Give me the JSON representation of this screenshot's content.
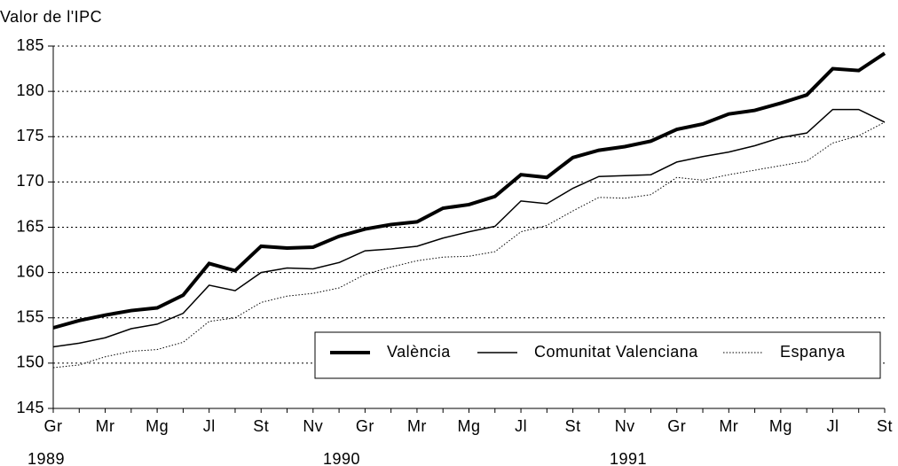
{
  "chart_data": {
    "type": "line",
    "y_axis_label": "Valor de l'IPC",
    "categories": [
      "Gr",
      null,
      "Mr",
      null,
      "Mg",
      null,
      "Jl",
      null,
      "St",
      null,
      "Nv",
      null,
      "Gr",
      null,
      "Mr",
      null,
      "Mg",
      null,
      "Jl",
      null,
      "St",
      null,
      "Nv",
      null,
      "Gr",
      null,
      "Mr",
      null,
      "Mg",
      null,
      "Jl",
      null,
      "St"
    ],
    "years": [
      "1989",
      "1990",
      "1991"
    ],
    "series": [
      {
        "name": "València",
        "color": "#000000",
        "width": 4,
        "values": [
          153.9,
          154.7,
          155.3,
          155.8,
          156.1,
          157.5,
          161.0,
          160.2,
          162.9,
          162.7,
          162.8,
          164.0,
          164.8,
          165.3,
          165.6,
          167.1,
          167.5,
          168.4,
          170.8,
          170.5,
          172.7,
          173.5,
          173.9,
          174.5,
          175.8,
          176.4,
          177.5,
          177.9,
          178.7,
          179.6,
          182.5,
          182.3,
          184.2
        ]
      },
      {
        "name": "Comunitat Valenciana",
        "color": "#000000",
        "width": 1.5,
        "values": [
          151.8,
          152.2,
          152.8,
          153.8,
          154.3,
          155.5,
          158.6,
          158.0,
          160.0,
          160.5,
          160.4,
          161.1,
          162.4,
          162.6,
          162.9,
          163.8,
          164.5,
          165.1,
          167.9,
          167.6,
          169.3,
          170.6,
          170.7,
          170.8,
          172.2,
          172.8,
          173.3,
          174.0,
          174.9,
          175.4,
          178.0,
          178.0,
          176.6
        ]
      },
      {
        "name": "Espanya",
        "color": "#000000",
        "width": 1,
        "dash": "dotted",
        "values": [
          149.5,
          149.8,
          150.7,
          151.3,
          151.5,
          152.3,
          154.6,
          155.0,
          156.7,
          157.4,
          157.7,
          158.3,
          159.8,
          160.6,
          161.3,
          161.7,
          161.8,
          162.3,
          164.5,
          165.2,
          166.8,
          168.3,
          168.2,
          168.6,
          170.5,
          170.2,
          170.8,
          171.3,
          171.8,
          172.3,
          174.3,
          175.1,
          176.6
        ]
      }
    ],
    "ylim": [
      145,
      185
    ],
    "yticks": [
      145,
      150,
      155,
      160,
      165,
      170,
      175,
      180,
      185
    ],
    "grid": true
  }
}
